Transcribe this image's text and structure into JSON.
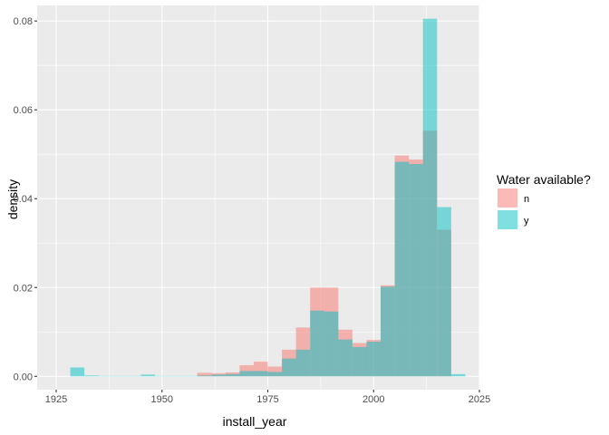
{
  "chart_data": {
    "type": "bar",
    "title": "",
    "xlabel": "install_year",
    "ylabel": "density",
    "xlim": [
      1920.5,
      2025
    ],
    "ylim": [
      -0.003,
      0.0835
    ],
    "x_ticks": [
      1925,
      1950,
      1975,
      2000,
      2025
    ],
    "x_tick_labels": [
      "1925",
      "1950",
      "1975",
      "2000",
      "2025"
    ],
    "y_ticks": [
      0.0,
      0.02,
      0.04,
      0.06,
      0.08
    ],
    "y_tick_labels": [
      "0.00",
      "0.02",
      "0.04",
      "0.06",
      "0.08"
    ],
    "bin_width": 3.33,
    "bin_centers": [
      1930.0,
      1933.33,
      1936.67,
      1940.0,
      1943.33,
      1946.67,
      1950.0,
      1953.33,
      1956.67,
      1960.0,
      1963.33,
      1966.67,
      1970.0,
      1973.33,
      1976.67,
      1980.0,
      1983.33,
      1986.67,
      1990.0,
      1993.33,
      1996.67,
      2000.0,
      2003.33,
      2006.67,
      2010.0,
      2013.33,
      2016.67,
      2020.0
    ],
    "grid": true,
    "legend": {
      "title": "Water available?",
      "position": "right"
    },
    "series": [
      {
        "name": "n",
        "color": "#F8766D",
        "values": [
          0.0,
          0.0,
          0.0,
          0.0,
          0.0,
          0.0,
          0.0,
          0.0,
          0.0,
          0.0008,
          0.0007,
          0.0009,
          0.0025,
          0.0033,
          0.0022,
          0.006,
          0.011,
          0.02,
          0.02,
          0.0105,
          0.0075,
          0.0082,
          0.0205,
          0.0497,
          0.0488,
          0.0553,
          0.033,
          0.0
        ]
      },
      {
        "name": "y",
        "color": "#00BFC4",
        "values": [
          0.002,
          0.0002,
          0.0001,
          0.0001,
          0.0001,
          0.0004,
          0.0001,
          0.0001,
          0.0001,
          0.0002,
          0.0004,
          0.0005,
          0.0012,
          0.0012,
          0.001,
          0.004,
          0.006,
          0.0148,
          0.0146,
          0.0083,
          0.0066,
          0.0078,
          0.0202,
          0.0483,
          0.0478,
          0.0805,
          0.0381,
          0.0005
        ]
      }
    ]
  }
}
